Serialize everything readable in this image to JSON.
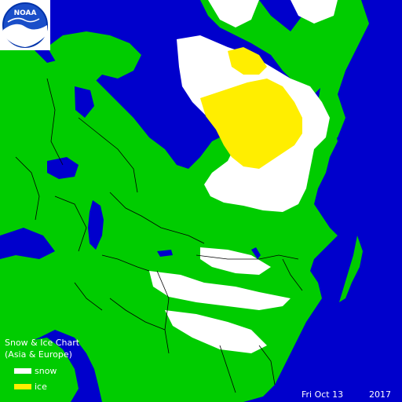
{
  "colors": {
    "ocean": "#0000cc",
    "land": "#00cc00",
    "snow": "#ffffff",
    "ice": "#ffee00",
    "borders": "#000000"
  },
  "logo": {
    "text": "NOAA",
    "icon": "noaa-logo-icon"
  },
  "legend": {
    "title_line1": "Snow & Ice Chart",
    "title_line2": "(Asia & Europe)",
    "items": [
      {
        "label": "snow",
        "color": "#ffffff"
      },
      {
        "label": "ice",
        "color": "#ffee00"
      }
    ]
  },
  "date": {
    "day_and_month": "Fri Oct 13",
    "year": "2017"
  }
}
